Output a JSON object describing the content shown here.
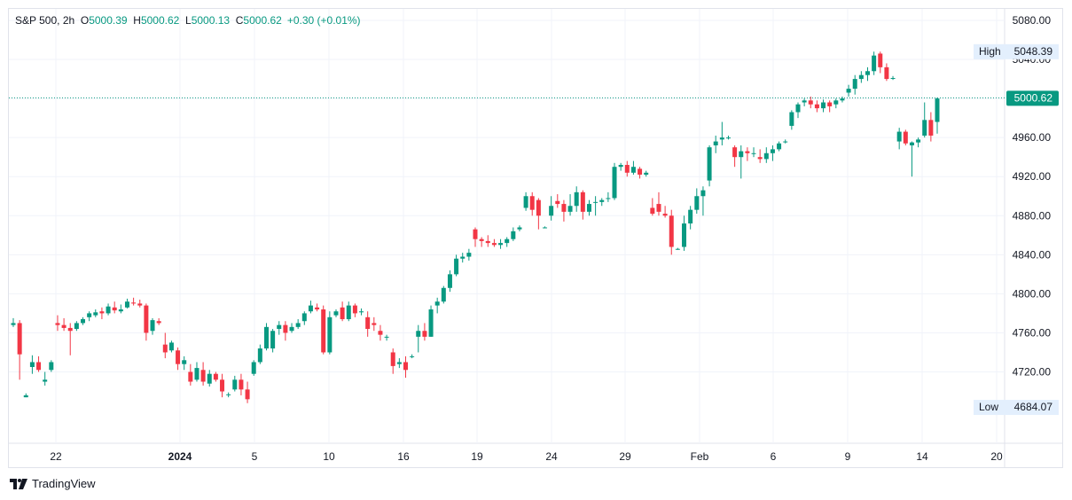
{
  "header": {
    "symbol": "S&P 500",
    "interval": "2h",
    "open_label": "O",
    "open": "5000.39",
    "high_label": "H",
    "high": "5000.62",
    "low_label": "L",
    "low": "5000.13",
    "close_label": "C",
    "close": "5000.62",
    "change": "+0.30 (+0.01%)"
  },
  "branding": {
    "logo_text": "TradingView"
  },
  "colors": {
    "up": "#089981",
    "down": "#f23645",
    "grid": "#f0f3fa",
    "axis_text": "#131722",
    "border": "#e0e3eb",
    "tag_bg": "#e3effd"
  },
  "chart_data": {
    "type": "candlestick",
    "ylim": [
      4660,
      5090
    ],
    "y_ticks": [
      "4720.00",
      "4760.00",
      "4800.00",
      "4840.00",
      "4880.00",
      "4920.00",
      "4960.00",
      "5000.00",
      "5040.00",
      "5080.00"
    ],
    "x_ticks": [
      {
        "label": "22",
        "x": 5,
        "bold": false
      },
      {
        "label": "2024",
        "x": 22,
        "bold": true
      },
      {
        "label": "5",
        "x": 39,
        "bold": false
      },
      {
        "label": "10",
        "x": 56,
        "bold": false
      },
      {
        "label": "16",
        "x": 73,
        "bold": false
      },
      {
        "label": "19",
        "x": 90,
        "bold": false
      },
      {
        "label": "24",
        "x": 107,
        "bold": false
      },
      {
        "label": "29",
        "x": 124,
        "bold": false
      },
      {
        "label": "Feb",
        "x": 141,
        "bold": false
      },
      {
        "label": "6",
        "x": 158,
        "bold": false
      },
      {
        "label": "9",
        "x": 175,
        "bold": false
      },
      {
        "label": "14",
        "x": 192,
        "bold": false
      },
      {
        "label": "20",
        "x": 209,
        "bold": false
      }
    ],
    "last_price": "5000.62",
    "high_marker": {
      "label": "High",
      "value": "5048.39"
    },
    "low_marker": {
      "label": "Low",
      "value": "4684.07"
    },
    "candles": [
      [
        4768,
        4775,
        4766,
        4770
      ],
      [
        4770,
        4773,
        4712,
        4738
      ],
      [
        4694,
        4698,
        4694,
        4696
      ],
      [
        4725,
        4737,
        4718,
        4730
      ],
      [
        4730,
        4736,
        4720,
        4722
      ],
      [
        4710,
        4720,
        4706,
        4712
      ],
      [
        4722,
        4732,
        4720,
        4730
      ],
      [
        4770,
        4778,
        4762,
        4768
      ],
      [
        4768,
        4775,
        4762,
        4765
      ],
      [
        4765,
        4770,
        4737,
        4762
      ],
      [
        4764,
        4772,
        4762,
        4770
      ],
      [
        4770,
        4776,
        4768,
        4774
      ],
      [
        4776,
        4782,
        4772,
        4780
      ],
      [
        4778,
        4784,
        4776,
        4781
      ],
      [
        4782,
        4786,
        4774,
        4780
      ],
      [
        4780,
        4790,
        4778,
        4787
      ],
      [
        4786,
        4792,
        4780,
        4783
      ],
      [
        4782,
        4789,
        4780,
        4784
      ],
      [
        4786,
        4795,
        4785,
        4792
      ],
      [
        4791,
        4796,
        4788,
        4790
      ],
      [
        4790,
        4794,
        4786,
        4788
      ],
      [
        4788,
        4790,
        4752,
        4760
      ],
      [
        4762,
        4775,
        4758,
        4773
      ],
      [
        4772,
        4775,
        4768,
        4770
      ],
      [
        4748,
        4760,
        4734,
        4740
      ],
      [
        4742,
        4752,
        4740,
        4750
      ],
      [
        4742,
        4745,
        4722,
        4728
      ],
      [
        4728,
        4736,
        4722,
        4732
      ],
      [
        4720,
        4728,
        4706,
        4710
      ],
      [
        4712,
        4730,
        4710,
        4724
      ],
      [
        4722,
        4730,
        4706,
        4710
      ],
      [
        4708,
        4722,
        4705,
        4718
      ],
      [
        4718,
        4720,
        4710,
        4712
      ],
      [
        4712,
        4718,
        4694,
        4700
      ],
      [
        4697,
        4699,
        4694,
        4697
      ],
      [
        4702,
        4716,
        4700,
        4712
      ],
      [
        4712,
        4718,
        4696,
        4702
      ],
      [
        4702,
        4710,
        4688,
        4692
      ],
      [
        4718,
        4732,
        4716,
        4730
      ],
      [
        4730,
        4748,
        4728,
        4744
      ],
      [
        4744,
        4770,
        4742,
        4766
      ],
      [
        4744,
        4764,
        4740,
        4762
      ],
      [
        4764,
        4772,
        4758,
        4768
      ],
      [
        4768,
        4772,
        4752,
        4760
      ],
      [
        4762,
        4770,
        4760,
        4766
      ],
      [
        4766,
        4774,
        4764,
        4770
      ],
      [
        4772,
        4782,
        4768,
        4780
      ],
      [
        4782,
        4793,
        4780,
        4788
      ],
      [
        4786,
        4790,
        4782,
        4784
      ],
      [
        4784,
        4788,
        4738,
        4740
      ],
      [
        4740,
        4782,
        4738,
        4776
      ],
      [
        4778,
        4784,
        4776,
        4782
      ],
      [
        4786,
        4792,
        4772,
        4774
      ],
      [
        4774,
        4792,
        4772,
        4788
      ],
      [
        4788,
        4790,
        4776,
        4780
      ],
      [
        4781,
        4785,
        4778,
        4782
      ],
      [
        4776,
        4782,
        4756,
        4764
      ],
      [
        4770,
        4776,
        4762,
        4768
      ],
      [
        4762,
        4768,
        4752,
        4758
      ],
      [
        4756,
        4758,
        4752,
        4756
      ],
      [
        4740,
        4744,
        4718,
        4726
      ],
      [
        4728,
        4734,
        4724,
        4730
      ],
      [
        4730,
        4736,
        4714,
        4722
      ],
      [
        4736,
        4738,
        4734,
        4736
      ],
      [
        4756,
        4768,
        4740,
        4762
      ],
      [
        4762,
        4770,
        4752,
        4756
      ],
      [
        4756,
        4788,
        4756,
        4784
      ],
      [
        4788,
        4796,
        4780,
        4792
      ],
      [
        4792,
        4808,
        4790,
        4806
      ],
      [
        4806,
        4824,
        4802,
        4820
      ],
      [
        4820,
        4840,
        4818,
        4836
      ],
      [
        4836,
        4842,
        4832,
        4838
      ],
      [
        4838,
        4846,
        4834,
        4842
      ],
      [
        4866,
        4868,
        4848,
        4856
      ],
      [
        4856,
        4858,
        4848,
        4854
      ],
      [
        4854,
        4860,
        4848,
        4852
      ],
      [
        4852,
        4856,
        4848,
        4850
      ],
      [
        4850,
        4856,
        4846,
        4852
      ],
      [
        4852,
        4858,
        4848,
        4856
      ],
      [
        4856,
        4868,
        4854,
        4864
      ],
      [
        4866,
        4870,
        4864,
        4868
      ],
      [
        4888,
        4904,
        4885,
        4900
      ],
      [
        4900,
        4904,
        4880,
        4886
      ],
      [
        4896,
        4898,
        4866,
        4880
      ],
      [
        4868,
        4869,
        4867,
        4868
      ],
      [
        4880,
        4900,
        4875,
        4890
      ],
      [
        4895,
        4902,
        4888,
        4892
      ],
      [
        4892,
        4896,
        4874,
        4884
      ],
      [
        4884,
        4902,
        4880,
        4890
      ],
      [
        4890,
        4910,
        4884,
        4904
      ],
      [
        4904,
        4906,
        4876,
        4884
      ],
      [
        4884,
        4896,
        4880,
        4892
      ],
      [
        4894,
        4900,
        4880,
        4894
      ],
      [
        4894,
        4898,
        4890,
        4896
      ],
      [
        4898,
        4904,
        4894,
        4898
      ],
      [
        4898,
        4934,
        4896,
        4930
      ],
      [
        4930,
        4934,
        4926,
        4932
      ],
      [
        4932,
        4936,
        4920,
        4924
      ],
      [
        4924,
        4936,
        4922,
        4930
      ],
      [
        4928,
        4930,
        4918,
        4922
      ],
      [
        4922,
        4926,
        4920,
        4924
      ],
      [
        4888,
        4898,
        4880,
        4882
      ],
      [
        4892,
        4904,
        4880,
        4884
      ],
      [
        4882,
        4890,
        4878,
        4880
      ],
      [
        4880,
        4886,
        4840,
        4848
      ],
      [
        4846,
        4847,
        4845,
        4846
      ],
      [
        4848,
        4880,
        4844,
        4872
      ],
      [
        4872,
        4890,
        4866,
        4886
      ],
      [
        4886,
        4908,
        4882,
        4900
      ],
      [
        4900,
        4910,
        4880,
        4906
      ],
      [
        4916,
        4952,
        4910,
        4950
      ],
      [
        4952,
        4962,
        4944,
        4956
      ],
      [
        4958,
        4976,
        4952,
        4960
      ],
      [
        4960,
        4962,
        4958,
        4960
      ],
      [
        4950,
        4952,
        4930,
        4940
      ],
      [
        4940,
        4952,
        4918,
        4946
      ],
      [
        4946,
        4950,
        4936,
        4944
      ],
      [
        4944,
        4950,
        4940,
        4944
      ],
      [
        4940,
        4948,
        4934,
        4938
      ],
      [
        4938,
        4950,
        4934,
        4944
      ],
      [
        4944,
        4952,
        4936,
        4948
      ],
      [
        4948,
        4956,
        4946,
        4954
      ],
      [
        4956,
        4958,
        4954,
        4956
      ],
      [
        4972,
        4988,
        4968,
        4986
      ],
      [
        4986,
        4996,
        4980,
        4994
      ],
      [
        4996,
        5000,
        4992,
        4998
      ],
      [
        4998,
        5002,
        4990,
        4994
      ],
      [
        4994,
        4998,
        4986,
        4990
      ],
      [
        4990,
        4999,
        4986,
        4996
      ],
      [
        4996,
        4998,
        4986,
        4992
      ],
      [
        4994,
        5000,
        4990,
        4998
      ],
      [
        4998,
        5002,
        4996,
        5000
      ],
      [
        5006,
        5014,
        5002,
        5010
      ],
      [
        5010,
        5024,
        5004,
        5020
      ],
      [
        5020,
        5028,
        5016,
        5024
      ],
      [
        5024,
        5032,
        5018,
        5028
      ],
      [
        5028,
        5048,
        5024,
        5044
      ],
      [
        5046,
        5048,
        5026,
        5032
      ],
      [
        5032,
        5036,
        5018,
        5020
      ],
      [
        5021,
        5023,
        5019,
        5021
      ],
      [
        4956,
        4970,
        4948,
        4966
      ],
      [
        4966,
        4968,
        4952,
        4954
      ],
      [
        4952,
        4956,
        4920,
        4955
      ],
      [
        4955,
        4960,
        4950,
        4958
      ],
      [
        4962,
        4996,
        4960,
        4978
      ],
      [
        4978,
        4986,
        4956,
        4962
      ],
      [
        4976,
        5001,
        4964,
        5000
      ]
    ]
  }
}
